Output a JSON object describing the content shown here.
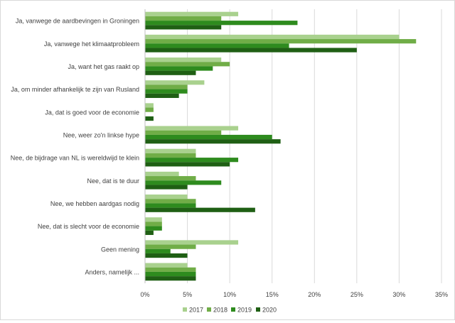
{
  "chart_data": {
    "type": "bar",
    "orientation": "horizontal",
    "categories": [
      "Ja, vanwege de aardbevingen in Groningen",
      "Ja, vanwege het klimaatprobleem",
      "Ja, want het gas raakt op",
      "Ja, om minder afhankelijk te zijn van Rusland",
      "Ja, dat is goed voor de economie",
      "Nee, weer zo'n linkse hype",
      "Nee, de bijdrage van NL is wereldwijd te klein",
      "Nee, dat is te duur",
      "Nee, we hebben aardgas nodig",
      "Nee, dat is slecht voor de economie",
      "Geen mening",
      "Anders, namelijk ..."
    ],
    "series": [
      {
        "name": "2017",
        "color": "#a9d18e",
        "values": [
          11,
          30,
          9,
          7,
          1,
          11,
          6,
          4,
          5,
          2,
          11,
          5
        ]
      },
      {
        "name": "2018",
        "color": "#70ad47",
        "values": [
          9,
          32,
          10,
          5,
          1,
          9,
          6,
          6,
          6,
          2,
          6,
          6
        ]
      },
      {
        "name": "2019",
        "color": "#2e8b1e",
        "values": [
          18,
          17,
          8,
          5,
          0,
          15,
          11,
          9,
          6,
          2,
          3,
          6
        ]
      },
      {
        "name": "2020",
        "color": "#1f5f14",
        "values": [
          9,
          25,
          6,
          4,
          1,
          16,
          10,
          5,
          13,
          1,
          5,
          6
        ]
      }
    ],
    "xlim": [
      0,
      35
    ],
    "xticks": [
      "0%",
      "5%",
      "10%",
      "15%",
      "20%",
      "25%",
      "30%",
      "35%"
    ],
    "legend_position": "bottom",
    "grid": "vertical"
  }
}
